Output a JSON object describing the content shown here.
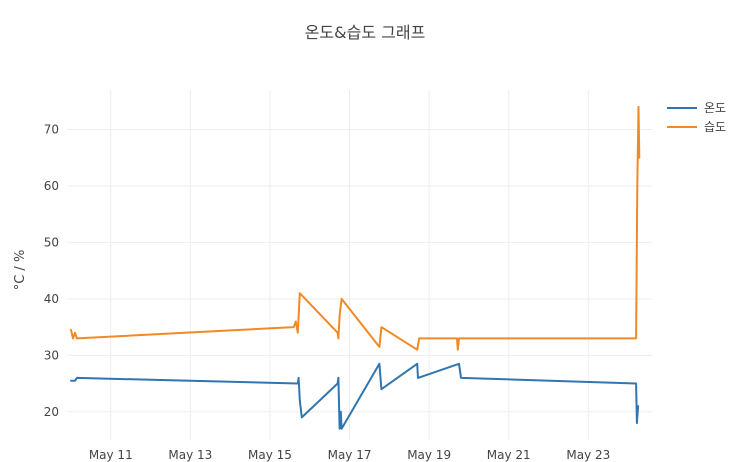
{
  "chart_data": {
    "type": "line",
    "title": "온도&습도 그래프",
    "ylabel": "°C / %",
    "xlabel": "",
    "x_tick_labels": [
      "May 11",
      "May 13",
      "May 15",
      "May 17",
      "May 19",
      "May 21",
      "May 23"
    ],
    "x_tick_days": [
      11,
      13,
      15,
      17,
      19,
      21,
      23
    ],
    "x_range_days": [
      9.9,
      24.6
    ],
    "y_ticks": [
      20,
      30,
      40,
      50,
      60,
      70
    ],
    "ylim": [
      15,
      77
    ],
    "grid": true,
    "legend_position": "top-right",
    "series": [
      {
        "name": "온도",
        "color": "#3176b0",
        "points": [
          [
            10.0,
            25.5
          ],
          [
            10.1,
            25.5
          ],
          [
            10.15,
            26.0
          ],
          [
            15.7,
            25.0
          ],
          [
            15.72,
            26.0
          ],
          [
            15.75,
            22.0
          ],
          [
            15.8,
            19.0
          ],
          [
            16.7,
            25.0
          ],
          [
            16.72,
            26.0
          ],
          [
            16.75,
            17.0
          ],
          [
            16.78,
            20.0
          ],
          [
            16.8,
            17.0
          ],
          [
            17.75,
            28.5
          ],
          [
            17.8,
            24.0
          ],
          [
            18.7,
            28.5
          ],
          [
            18.72,
            26.0
          ],
          [
            19.75,
            28.5
          ],
          [
            19.8,
            26.0
          ],
          [
            24.2,
            25.0
          ],
          [
            24.22,
            18.0
          ],
          [
            24.25,
            21.0
          ]
        ]
      },
      {
        "name": "습도",
        "color": "#f08a24",
        "points": [
          [
            10.0,
            34.5
          ],
          [
            10.05,
            33.0
          ],
          [
            10.1,
            34.0
          ],
          [
            10.15,
            33.0
          ],
          [
            15.6,
            35.0
          ],
          [
            15.65,
            36.0
          ],
          [
            15.7,
            34.0
          ],
          [
            15.75,
            41.0
          ],
          [
            16.7,
            34.0
          ],
          [
            16.72,
            33.0
          ],
          [
            16.75,
            37.0
          ],
          [
            16.8,
            40.0
          ],
          [
            17.75,
            31.5
          ],
          [
            17.8,
            35.0
          ],
          [
            18.7,
            31.0
          ],
          [
            18.75,
            33.0
          ],
          [
            19.7,
            33.0
          ],
          [
            19.72,
            31.0
          ],
          [
            19.75,
            33.0
          ],
          [
            24.2,
            33.0
          ],
          [
            24.23,
            60.0
          ],
          [
            24.26,
            74.0
          ],
          [
            24.28,
            65.0
          ]
        ]
      }
    ]
  }
}
